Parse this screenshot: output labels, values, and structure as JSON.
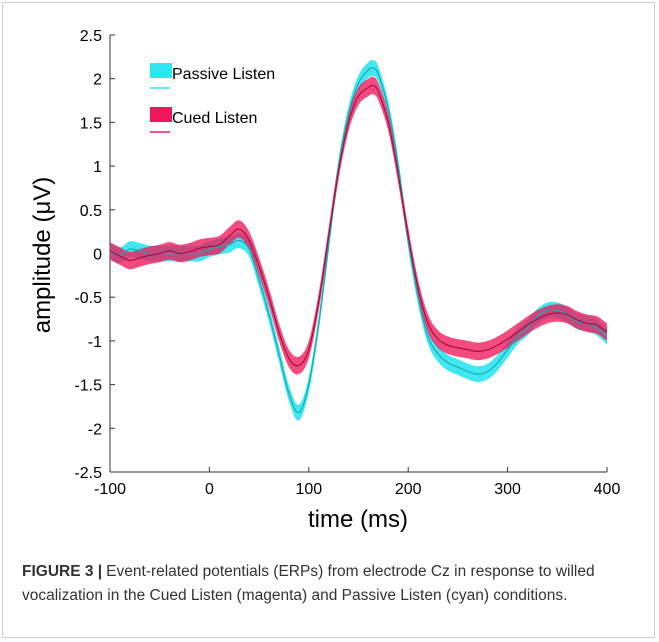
{
  "figure": {
    "label": "FIGURE 3 |",
    "caption": "Event-related potentials (ERPs) from electrode Cz in response to willed vocalization in the Cued Listen (magenta) and Passive Listen (cyan) conditions."
  },
  "chart_data": {
    "type": "line",
    "xlabel": "time (ms)",
    "ylabel": "amplitude (μV)",
    "xlim": [
      -100,
      400
    ],
    "ylim": [
      -2.5,
      2.5
    ],
    "xticks": [
      -100,
      0,
      100,
      200,
      300,
      400
    ],
    "yticks": [
      -2.5,
      -2,
      -1.5,
      -1,
      -0.5,
      0,
      0.5,
      1,
      1.5,
      2,
      2.5
    ],
    "xtick_labels": [
      "-100",
      "0",
      "100",
      "200",
      "300",
      "400"
    ],
    "ytick_labels": [
      "-2.5",
      "-2",
      "-1.5",
      "-1",
      "-0.5",
      "0",
      "0.5",
      "1",
      "1.5",
      "2",
      "2.5"
    ],
    "grid": false,
    "legend_position": "top-left",
    "x": [
      -100,
      -90,
      -80,
      -70,
      -60,
      -50,
      -40,
      -30,
      -20,
      -10,
      0,
      10,
      20,
      30,
      40,
      50,
      60,
      70,
      80,
      90,
      100,
      110,
      120,
      130,
      140,
      150,
      160,
      165,
      170,
      180,
      190,
      200,
      210,
      220,
      230,
      240,
      250,
      260,
      270,
      280,
      290,
      300,
      310,
      320,
      330,
      340,
      350,
      360,
      370,
      380,
      390,
      400
    ],
    "series": [
      {
        "name": "Passive Listen",
        "color": "#2ee6f0",
        "line_color": "#1aa8b0",
        "mean": [
          0.02,
          -0.02,
          0.05,
          0.03,
          0.0,
          0.0,
          0.0,
          0.0,
          0.0,
          0.0,
          0.05,
          0.08,
          0.1,
          0.15,
          0.05,
          -0.3,
          -0.7,
          -1.15,
          -1.6,
          -1.82,
          -1.5,
          -0.8,
          0.1,
          1.0,
          1.6,
          1.95,
          2.1,
          2.12,
          2.05,
          1.65,
          1.0,
          0.15,
          -0.5,
          -0.95,
          -1.15,
          -1.25,
          -1.3,
          -1.35,
          -1.38,
          -1.35,
          -1.25,
          -1.1,
          -0.95,
          -0.85,
          -0.72,
          -0.65,
          -0.65,
          -0.7,
          -0.78,
          -0.8,
          -0.85,
          -0.95
        ],
        "band": 0.09
      },
      {
        "name": "Cued Listen",
        "color": "#f0185a",
        "line_color": "#a01045",
        "mean": [
          0.03,
          -0.03,
          -0.08,
          -0.05,
          -0.02,
          0.0,
          0.03,
          0.0,
          0.02,
          0.06,
          0.08,
          0.1,
          0.2,
          0.28,
          0.15,
          -0.15,
          -0.5,
          -0.9,
          -1.2,
          -1.28,
          -1.1,
          -0.55,
          0.2,
          0.95,
          1.5,
          1.8,
          1.9,
          1.92,
          1.85,
          1.5,
          0.9,
          0.2,
          -0.4,
          -0.8,
          -0.98,
          -1.05,
          -1.08,
          -1.1,
          -1.12,
          -1.1,
          -1.05,
          -0.98,
          -0.9,
          -0.82,
          -0.75,
          -0.7,
          -0.68,
          -0.7,
          -0.76,
          -0.8,
          -0.82,
          -0.9
        ],
        "band": 0.1
      }
    ]
  }
}
